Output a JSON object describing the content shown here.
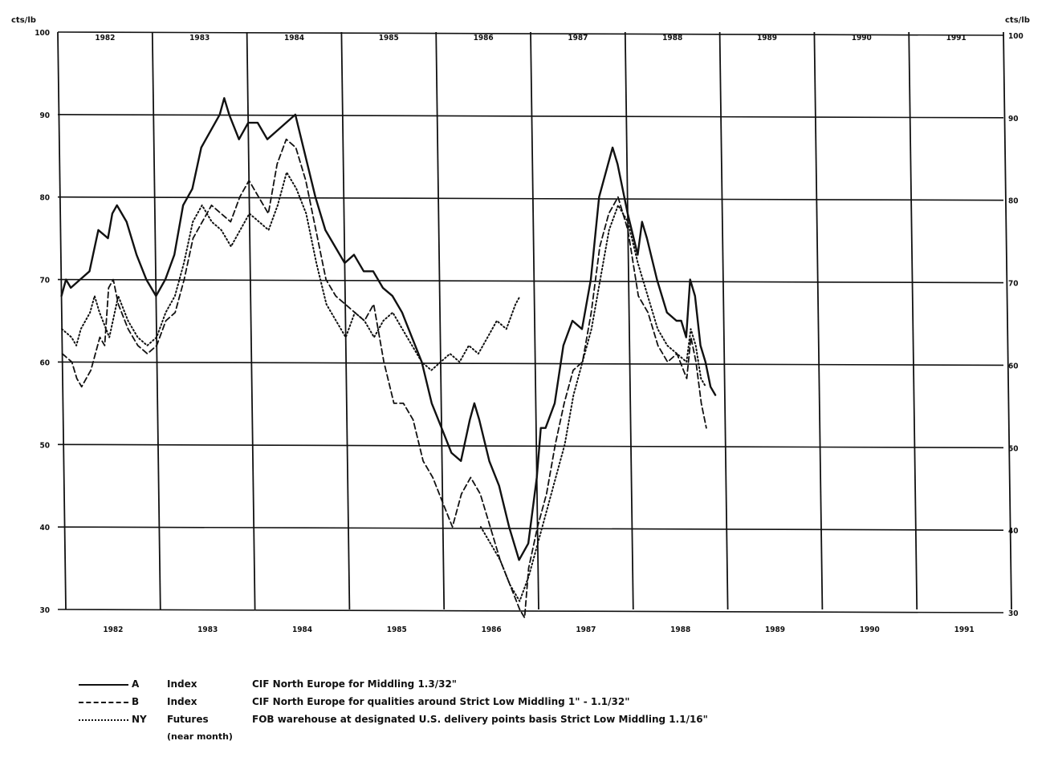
{
  "chart_data": {
    "type": "line",
    "unit_left": "cts/lb",
    "unit_right": "cts/lb",
    "ylim": [
      30,
      100
    ],
    "yticks": [
      30,
      40,
      50,
      60,
      70,
      80,
      90,
      100
    ],
    "xlim": [
      1982,
      1992
    ],
    "year_labels_top": [
      "1982",
      "1983",
      "1984",
      "1985",
      "1986",
      "1987",
      "1988",
      "1989",
      "1990",
      "1991"
    ],
    "year_labels_bottom": [
      "1982",
      "1983",
      "1984",
      "1985",
      "1986",
      "1987",
      "1988",
      "1989",
      "1990",
      "1991"
    ],
    "grid": true,
    "series": [
      {
        "name": "A",
        "style": "solid",
        "points": [
          [
            1982.0,
            68
          ],
          [
            1982.05,
            70
          ],
          [
            1982.1,
            69
          ],
          [
            1982.2,
            70
          ],
          [
            1982.3,
            71
          ],
          [
            1982.4,
            76
          ],
          [
            1982.5,
            75
          ],
          [
            1982.55,
            78
          ],
          [
            1982.6,
            79
          ],
          [
            1982.7,
            77
          ],
          [
            1982.8,
            73
          ],
          [
            1982.9,
            70
          ],
          [
            1983.0,
            68
          ],
          [
            1983.1,
            70
          ],
          [
            1983.2,
            73
          ],
          [
            1983.3,
            79
          ],
          [
            1983.4,
            81
          ],
          [
            1983.5,
            86
          ],
          [
            1983.6,
            88
          ],
          [
            1983.7,
            90
          ],
          [
            1983.75,
            92
          ],
          [
            1983.8,
            90
          ],
          [
            1983.9,
            87
          ],
          [
            1984.0,
            89
          ],
          [
            1984.1,
            89
          ],
          [
            1984.2,
            87
          ],
          [
            1984.3,
            88
          ],
          [
            1984.4,
            89
          ],
          [
            1984.5,
            90
          ],
          [
            1984.6,
            85
          ],
          [
            1984.7,
            80
          ],
          [
            1984.8,
            76
          ],
          [
            1984.9,
            74
          ],
          [
            1985.0,
            72
          ],
          [
            1985.1,
            73
          ],
          [
            1985.2,
            71
          ],
          [
            1985.3,
            71
          ],
          [
            1985.4,
            69
          ],
          [
            1985.5,
            68
          ],
          [
            1985.6,
            66
          ],
          [
            1985.7,
            63
          ],
          [
            1985.8,
            60
          ],
          [
            1985.9,
            55
          ],
          [
            1986.0,
            52
          ],
          [
            1986.1,
            49
          ],
          [
            1986.2,
            48
          ],
          [
            1986.3,
            53
          ],
          [
            1986.35,
            55
          ],
          [
            1986.4,
            53
          ],
          [
            1986.5,
            48
          ],
          [
            1986.6,
            45
          ],
          [
            1986.7,
            40
          ],
          [
            1986.8,
            36
          ],
          [
            1986.9,
            38
          ],
          [
            1987.0,
            46
          ],
          [
            1987.05,
            52
          ],
          [
            1987.1,
            52
          ],
          [
            1987.2,
            55
          ],
          [
            1987.3,
            62
          ],
          [
            1987.4,
            65
          ],
          [
            1987.5,
            64
          ],
          [
            1987.6,
            70
          ],
          [
            1987.7,
            80
          ],
          [
            1987.8,
            84
          ],
          [
            1987.85,
            86
          ],
          [
            1987.9,
            84
          ],
          [
            1988.0,
            78
          ],
          [
            1988.1,
            73
          ],
          [
            1988.15,
            77
          ],
          [
            1988.2,
            75
          ],
          [
            1988.3,
            70
          ],
          [
            1988.4,
            66
          ],
          [
            1988.5,
            65
          ],
          [
            1988.55,
            65
          ],
          [
            1988.6,
            63
          ],
          [
            1988.65,
            70
          ],
          [
            1988.7,
            68
          ],
          [
            1988.75,
            62
          ],
          [
            1988.8,
            60
          ],
          [
            1988.85,
            57
          ],
          [
            1988.9,
            56
          ]
        ]
      },
      {
        "name": "B",
        "style": "dashed",
        "points": [
          [
            1982.0,
            61
          ],
          [
            1982.1,
            60
          ],
          [
            1982.15,
            58
          ],
          [
            1982.2,
            57
          ],
          [
            1982.3,
            59
          ],
          [
            1982.4,
            63
          ],
          [
            1982.45,
            62
          ],
          [
            1982.5,
            69
          ],
          [
            1982.55,
            70
          ],
          [
            1982.6,
            67
          ],
          [
            1982.7,
            64
          ],
          [
            1982.8,
            62
          ],
          [
            1982.9,
            61
          ],
          [
            1983.0,
            62
          ],
          [
            1983.1,
            65
          ],
          [
            1983.2,
            66
          ],
          [
            1983.3,
            70
          ],
          [
            1983.4,
            75
          ],
          [
            1983.5,
            77
          ],
          [
            1983.6,
            79
          ],
          [
            1983.7,
            78
          ],
          [
            1983.8,
            77
          ],
          [
            1983.9,
            80
          ],
          [
            1984.0,
            82
          ],
          [
            1984.1,
            80
          ],
          [
            1984.2,
            78
          ],
          [
            1984.3,
            84
          ],
          [
            1984.4,
            87
          ],
          [
            1984.5,
            86
          ],
          [
            1984.6,
            82
          ],
          [
            1984.7,
            76
          ],
          [
            1984.8,
            70
          ],
          [
            1984.9,
            68
          ],
          [
            1985.0,
            67
          ],
          [
            1985.1,
            66
          ],
          [
            1985.2,
            65
          ],
          [
            1985.3,
            67
          ],
          [
            1985.4,
            60
          ],
          [
            1985.5,
            55
          ],
          [
            1985.6,
            55
          ],
          [
            1985.7,
            53
          ],
          [
            1985.8,
            48
          ],
          [
            1985.9,
            46
          ],
          [
            1986.0,
            43
          ],
          [
            1986.1,
            40
          ],
          [
            1986.2,
            44
          ],
          [
            1986.3,
            46
          ],
          [
            1986.4,
            44
          ],
          [
            1986.5,
            40
          ],
          [
            1986.6,
            36
          ],
          [
            1986.7,
            33
          ],
          [
            1986.8,
            30
          ],
          [
            1986.85,
            29
          ],
          [
            1986.9,
            35
          ],
          [
            1987.0,
            40
          ],
          [
            1987.1,
            44
          ],
          [
            1987.2,
            50
          ],
          [
            1987.3,
            55
          ],
          [
            1987.4,
            59
          ],
          [
            1987.5,
            60
          ],
          [
            1987.6,
            66
          ],
          [
            1987.7,
            74
          ],
          [
            1987.8,
            78
          ],
          [
            1987.9,
            80
          ],
          [
            1988.0,
            76
          ],
          [
            1988.1,
            68
          ],
          [
            1988.2,
            66
          ],
          [
            1988.3,
            62
          ],
          [
            1988.4,
            60
          ],
          [
            1988.5,
            61
          ],
          [
            1988.6,
            58
          ],
          [
            1988.65,
            63
          ],
          [
            1988.7,
            60
          ],
          [
            1988.75,
            55
          ],
          [
            1988.8,
            52
          ]
        ]
      },
      {
        "name": "NY",
        "style": "dotted",
        "points": [
          [
            1982.0,
            64
          ],
          [
            1982.1,
            63
          ],
          [
            1982.15,
            62
          ],
          [
            1982.2,
            64
          ],
          [
            1982.3,
            66
          ],
          [
            1982.35,
            68
          ],
          [
            1982.4,
            66
          ],
          [
            1982.5,
            63
          ],
          [
            1982.6,
            68
          ],
          [
            1982.7,
            65
          ],
          [
            1982.8,
            63
          ],
          [
            1982.9,
            62
          ],
          [
            1983.0,
            63
          ],
          [
            1983.1,
            66
          ],
          [
            1983.2,
            68
          ],
          [
            1983.3,
            72
          ],
          [
            1983.4,
            77
          ],
          [
            1983.5,
            79
          ],
          [
            1983.6,
            77
          ],
          [
            1983.7,
            76
          ],
          [
            1983.8,
            74
          ],
          [
            1983.9,
            76
          ],
          [
            1984.0,
            78
          ],
          [
            1984.1,
            77
          ],
          [
            1984.2,
            76
          ],
          [
            1984.3,
            79
          ],
          [
            1984.4,
            83
          ],
          [
            1984.5,
            81
          ],
          [
            1984.6,
            78
          ],
          [
            1984.7,
            72
          ],
          [
            1984.8,
            67
          ],
          [
            1984.9,
            65
          ],
          [
            1985.0,
            63
          ],
          [
            1985.1,
            66
          ],
          [
            1985.2,
            65
          ],
          [
            1985.3,
            63
          ],
          [
            1985.4,
            65
          ],
          [
            1985.5,
            66
          ],
          [
            1985.6,
            64
          ],
          [
            1985.7,
            62
          ],
          [
            1985.8,
            60
          ],
          [
            1985.9,
            59
          ],
          [
            1986.0,
            60
          ],
          [
            1986.1,
            61
          ],
          [
            1986.2,
            60
          ],
          [
            1986.3,
            62
          ],
          [
            1986.4,
            61
          ],
          [
            1986.5,
            63
          ],
          [
            1986.6,
            65
          ],
          [
            1986.7,
            64
          ],
          [
            1986.8,
            67
          ],
          [
            1986.85,
            68
          ]
        ]
      },
      {
        "name": "NY",
        "style": "dotted",
        "points": [
          [
            1986.4,
            40
          ],
          [
            1986.5,
            38
          ],
          [
            1986.6,
            36
          ],
          [
            1986.7,
            33
          ],
          [
            1986.8,
            31
          ],
          [
            1986.9,
            34
          ],
          [
            1987.0,
            38
          ],
          [
            1987.1,
            42
          ],
          [
            1987.2,
            46
          ],
          [
            1987.3,
            50
          ],
          [
            1987.4,
            56
          ],
          [
            1987.5,
            60
          ],
          [
            1987.6,
            64
          ],
          [
            1987.7,
            70
          ],
          [
            1987.8,
            76
          ],
          [
            1987.9,
            79
          ],
          [
            1988.0,
            77
          ],
          [
            1988.1,
            72
          ],
          [
            1988.2,
            68
          ],
          [
            1988.3,
            64
          ],
          [
            1988.4,
            62
          ],
          [
            1988.5,
            61
          ],
          [
            1988.6,
            60
          ],
          [
            1988.65,
            64
          ],
          [
            1988.7,
            62
          ],
          [
            1988.75,
            58
          ],
          [
            1988.8,
            57
          ]
        ]
      }
    ]
  },
  "legend": [
    {
      "code": "A",
      "kind": "Index",
      "desc": "CIF North Europe for Middling 1.3/32\"",
      "style": "solid"
    },
    {
      "code": "B",
      "kind": "Index",
      "desc": "CIF North Europe for qualities around Strict Low Middling 1\" - 1.1/32\"",
      "style": "dashed"
    },
    {
      "code": "NY",
      "kind": "Futures",
      "desc": "FOB warehouse at designated U.S. delivery points basis Strict Low Middling 1.1/16\"",
      "style": "dotted"
    }
  ],
  "legend_note": "(near month)"
}
